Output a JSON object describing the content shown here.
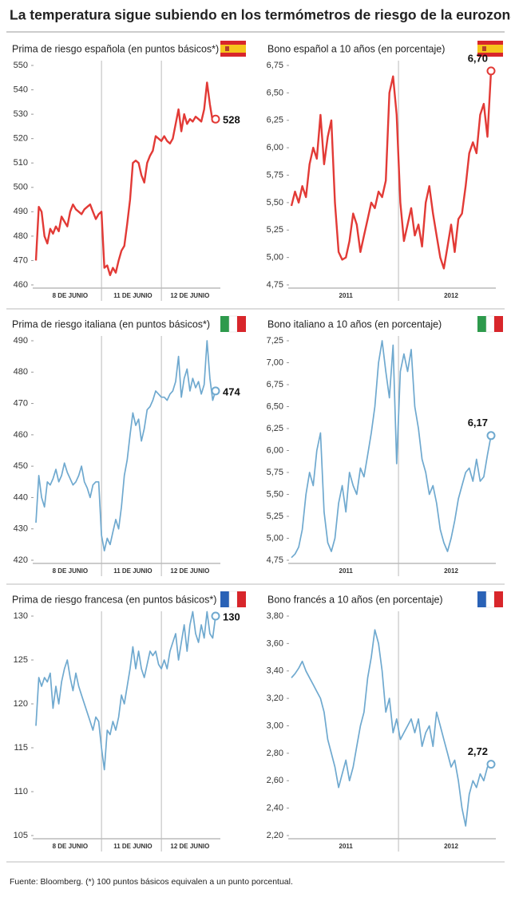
{
  "title": "La temperatura sigue subiendo en los termómetros de riesgo de la eurozona",
  "source": "Fuente: Bloomberg. (*) 100 puntos básicos equivalen a un punto porcentual.",
  "chart_data": [
    {
      "type": "line",
      "title": "Prima de riesgo española (en puntos básicos*)",
      "color": "#e23a36",
      "categories": [
        null,
        null,
        null,
        null,
        null,
        null,
        null,
        null,
        null,
        null,
        null,
        null,
        "8 DE JUNIO",
        null,
        null,
        null,
        null,
        null,
        null,
        null,
        null,
        null,
        null,
        null,
        null,
        null,
        null,
        null,
        null,
        null,
        null,
        null,
        null,
        null,
        "11 DE JUNIO",
        null,
        null,
        null,
        null,
        null,
        null,
        null,
        null,
        null,
        null,
        null,
        null,
        null,
        null,
        null,
        null,
        null,
        null,
        null,
        "12 DE JUNIO",
        null,
        null,
        null,
        null,
        null,
        null,
        null,
        null,
        null
      ],
      "values": [
        470,
        492,
        490,
        480,
        477,
        483,
        481,
        484,
        482,
        488,
        486,
        484,
        490,
        493,
        491,
        490,
        489,
        491,
        492,
        493,
        490,
        487,
        489,
        490,
        467,
        468,
        464,
        467,
        465,
        470,
        474,
        476,
        485,
        495,
        510,
        511,
        510,
        505,
        502,
        510,
        513,
        515,
        521,
        520,
        519,
        521,
        519,
        518,
        520,
        526,
        532,
        523,
        530,
        526,
        528,
        527,
        529,
        528,
        527,
        532,
        543,
        534,
        527,
        528
      ],
      "ylim": [
        460,
        550
      ],
      "yticks": [
        460,
        470,
        480,
        490,
        500,
        510,
        520,
        530,
        540,
        550
      ]
    },
    {
      "type": "line",
      "title": "Bono español a 10 años (en porcentaje)",
      "color": "#e23a36",
      "categories": [
        null,
        null,
        null,
        null,
        null,
        null,
        null,
        null,
        null,
        null,
        null,
        null,
        null,
        null,
        null,
        "2011",
        null,
        null,
        null,
        null,
        null,
        null,
        null,
        null,
        null,
        null,
        null,
        null,
        null,
        null,
        null,
        null,
        null,
        null,
        null,
        null,
        null,
        null,
        null,
        null,
        null,
        null,
        null,
        null,
        "2012",
        null,
        null,
        null,
        null,
        null,
        null,
        null,
        null,
        null,
        null,
        null
      ],
      "values": [
        5.47,
        5.6,
        5.5,
        5.65,
        5.55,
        5.85,
        6.0,
        5.9,
        6.3,
        5.85,
        6.1,
        6.25,
        5.5,
        5.05,
        4.98,
        5.0,
        5.15,
        5.4,
        5.3,
        5.05,
        5.2,
        5.35,
        5.5,
        5.45,
        5.6,
        5.55,
        5.7,
        6.5,
        6.65,
        6.3,
        5.5,
        5.15,
        5.3,
        5.45,
        5.2,
        5.3,
        5.1,
        5.5,
        5.65,
        5.4,
        5.2,
        5.0,
        4.9,
        5.1,
        5.3,
        5.05,
        5.35,
        5.4,
        5.65,
        5.95,
        6.05,
        5.95,
        6.3,
        6.4,
        6.1,
        6.7
      ],
      "value_labels": [
        null,
        null,
        null,
        null,
        null,
        null,
        null,
        null,
        null,
        null,
        null,
        null,
        null,
        null,
        null,
        null,
        null,
        null,
        null,
        null,
        null,
        null,
        null,
        null,
        null,
        null,
        null,
        null,
        null,
        null,
        null,
        null,
        null,
        null,
        null,
        null,
        null,
        null,
        null,
        null,
        null,
        null,
        null,
        null,
        null,
        null,
        null,
        null,
        null,
        null,
        null,
        null,
        null,
        null,
        null,
        "6,70"
      ],
      "ylim": [
        4.75,
        6.75
      ],
      "yticks": [
        {
          "value": 4.75,
          "label": "4,75"
        },
        {
          "value": 5.0,
          "label": "5,00"
        },
        {
          "value": 5.25,
          "label": "5,25"
        },
        {
          "value": 5.5,
          "label": "5,50"
        },
        {
          "value": 5.75,
          "label": "5,75"
        },
        {
          "value": 6.0,
          "label": "6,00"
        },
        {
          "value": 6.25,
          "label": "6,25"
        },
        {
          "value": 6.5,
          "label": "6,50"
        },
        {
          "value": 6.75,
          "label": "6,75"
        }
      ]
    },
    {
      "type": "line",
      "title": "Prima de riesgo italiana (en puntos básicos*)",
      "color": "#6fa9cf",
      "categories": [
        null,
        null,
        null,
        null,
        null,
        null,
        null,
        null,
        null,
        null,
        null,
        null,
        "8 DE JUNIO",
        null,
        null,
        null,
        null,
        null,
        null,
        null,
        null,
        null,
        null,
        null,
        null,
        null,
        null,
        null,
        null,
        null,
        null,
        null,
        null,
        null,
        "11 DE JUNIO",
        null,
        null,
        null,
        null,
        null,
        null,
        null,
        null,
        null,
        null,
        null,
        null,
        null,
        null,
        null,
        null,
        null,
        null,
        null,
        "12 DE JUNIO",
        null,
        null,
        null,
        null,
        null,
        null,
        null,
        null,
        null
      ],
      "values": [
        432,
        447,
        440,
        437,
        445,
        444,
        446,
        449,
        445,
        447,
        451,
        448,
        446,
        444,
        445,
        447,
        450,
        445,
        443,
        440,
        444,
        445,
        445,
        428,
        423,
        427,
        425,
        429,
        433,
        430,
        437,
        447,
        452,
        460,
        467,
        463,
        465,
        458,
        462,
        468,
        469,
        471,
        474,
        473,
        472,
        472,
        471,
        473,
        474,
        477,
        485,
        472,
        478,
        481,
        474,
        478,
        475,
        477,
        473,
        476,
        490,
        478,
        471,
        474
      ],
      "ylim": [
        420,
        490
      ],
      "yticks": [
        420,
        430,
        440,
        450,
        460,
        470,
        480,
        490
      ]
    },
    {
      "type": "line",
      "title": "Bono italiano a 10 años (en porcentaje)",
      "color": "#6fa9cf",
      "categories": [
        null,
        null,
        null,
        null,
        null,
        null,
        null,
        null,
        null,
        null,
        null,
        null,
        null,
        null,
        null,
        "2011",
        null,
        null,
        null,
        null,
        null,
        null,
        null,
        null,
        null,
        null,
        null,
        null,
        null,
        null,
        null,
        null,
        null,
        null,
        null,
        null,
        null,
        null,
        null,
        null,
        null,
        null,
        null,
        null,
        "2012",
        null,
        null,
        null,
        null,
        null,
        null,
        null,
        null,
        null,
        null,
        null
      ],
      "values": [
        4.78,
        4.82,
        4.9,
        5.1,
        5.5,
        5.75,
        5.6,
        6.0,
        6.2,
        5.3,
        4.95,
        4.85,
        5.0,
        5.4,
        5.6,
        5.3,
        5.75,
        5.6,
        5.5,
        5.8,
        5.7,
        5.95,
        6.2,
        6.5,
        7.0,
        7.25,
        6.9,
        6.6,
        7.2,
        5.85,
        6.9,
        7.1,
        6.9,
        7.15,
        6.5,
        6.25,
        5.9,
        5.75,
        5.5,
        5.6,
        5.4,
        5.1,
        4.95,
        4.85,
        5.0,
        5.2,
        5.45,
        5.6,
        5.75,
        5.8,
        5.65,
        5.9,
        5.65,
        5.7,
        5.95,
        6.17
      ],
      "value_labels": [
        null,
        null,
        null,
        null,
        null,
        null,
        null,
        null,
        null,
        null,
        null,
        null,
        null,
        null,
        null,
        null,
        null,
        null,
        null,
        null,
        null,
        null,
        null,
        null,
        null,
        null,
        null,
        null,
        null,
        null,
        null,
        null,
        null,
        null,
        null,
        null,
        null,
        null,
        null,
        null,
        null,
        null,
        null,
        null,
        null,
        null,
        null,
        null,
        null,
        null,
        null,
        null,
        null,
        null,
        null,
        "6,17"
      ],
      "ylim": [
        4.75,
        7.25
      ],
      "yticks": [
        {
          "value": 4.75,
          "label": "4,75"
        },
        {
          "value": 5.0,
          "label": "5,00"
        },
        {
          "value": 5.25,
          "label": "5,25"
        },
        {
          "value": 5.5,
          "label": "5,50"
        },
        {
          "value": 5.75,
          "label": "5,75"
        },
        {
          "value": 6.0,
          "label": "6,00"
        },
        {
          "value": 6.25,
          "label": "6,25"
        },
        {
          "value": 6.5,
          "label": "6,50"
        },
        {
          "value": 6.75,
          "label": "6,75"
        },
        {
          "value": 7.0,
          "label": "7,00"
        },
        {
          "value": 7.25,
          "label": "7,25"
        }
      ]
    },
    {
      "type": "line",
      "title": "Prima de riesgo francesa (en puntos básicos*)",
      "color": "#6fa9cf",
      "categories": [
        null,
        null,
        null,
        null,
        null,
        null,
        null,
        null,
        null,
        null,
        null,
        null,
        "8 DE JUNIO",
        null,
        null,
        null,
        null,
        null,
        null,
        null,
        null,
        null,
        null,
        null,
        null,
        null,
        null,
        null,
        null,
        null,
        null,
        null,
        null,
        null,
        "11 DE JUNIO",
        null,
        null,
        null,
        null,
        null,
        null,
        null,
        null,
        null,
        null,
        null,
        null,
        null,
        null,
        null,
        null,
        null,
        null,
        null,
        "12 DE JUNIO",
        null,
        null,
        null,
        null,
        null,
        null,
        null,
        null,
        null
      ],
      "values": [
        117.5,
        123,
        122,
        123,
        122.5,
        123.5,
        119.5,
        122,
        120,
        122.5,
        124,
        125,
        123,
        121.5,
        123.5,
        122,
        121,
        120,
        119,
        118,
        117,
        118.5,
        118,
        115,
        112.5,
        117,
        116.5,
        118,
        117,
        118.5,
        121,
        120,
        122,
        124,
        126.5,
        124,
        126,
        124,
        123,
        124.5,
        126,
        125.5,
        126,
        124.5,
        124,
        125,
        124,
        126,
        127,
        128,
        125,
        127,
        129,
        126,
        129,
        130.5,
        128,
        127,
        129,
        127.5,
        130.5,
        128,
        127.5,
        130
      ],
      "ylim": [
        105,
        130
      ],
      "yticks": [
        105,
        110,
        115,
        120,
        125,
        130
      ]
    },
    {
      "type": "line",
      "title": "Bono francés a 10 años (en porcentaje)",
      "color": "#6fa9cf",
      "categories": [
        null,
        null,
        null,
        null,
        null,
        null,
        null,
        null,
        null,
        null,
        null,
        null,
        null,
        null,
        null,
        "2011",
        null,
        null,
        null,
        null,
        null,
        null,
        null,
        null,
        null,
        null,
        null,
        null,
        null,
        null,
        null,
        null,
        null,
        null,
        null,
        null,
        null,
        null,
        null,
        null,
        null,
        null,
        null,
        null,
        "2012",
        null,
        null,
        null,
        null,
        null,
        null,
        null,
        null,
        null,
        null,
        null
      ],
      "values": [
        3.35,
        3.38,
        3.42,
        3.47,
        3.4,
        3.35,
        3.3,
        3.25,
        3.2,
        3.1,
        2.9,
        2.8,
        2.7,
        2.55,
        2.65,
        2.75,
        2.6,
        2.7,
        2.85,
        3.0,
        3.1,
        3.35,
        3.5,
        3.7,
        3.6,
        3.4,
        3.1,
        3.2,
        2.95,
        3.05,
        2.9,
        2.95,
        3.0,
        3.05,
        2.95,
        3.05,
        2.85,
        2.95,
        3.0,
        2.85,
        3.1,
        3.0,
        2.9,
        2.8,
        2.7,
        2.75,
        2.6,
        2.4,
        2.27,
        2.5,
        2.6,
        2.55,
        2.65,
        2.6,
        2.7,
        2.72
      ],
      "value_labels": [
        null,
        null,
        null,
        null,
        null,
        null,
        null,
        null,
        null,
        null,
        null,
        null,
        null,
        null,
        null,
        null,
        null,
        null,
        null,
        null,
        null,
        null,
        null,
        null,
        null,
        null,
        null,
        null,
        null,
        null,
        null,
        null,
        null,
        null,
        null,
        null,
        null,
        null,
        null,
        null,
        null,
        null,
        null,
        null,
        null,
        null,
        null,
        null,
        null,
        null,
        null,
        null,
        null,
        null,
        null,
        "2,72"
      ],
      "ylim": [
        2.2,
        3.8
      ],
      "yticks": [
        {
          "value": 2.2,
          "label": "2,20"
        },
        {
          "value": 2.4,
          "label": "2,40"
        },
        {
          "value": 2.6,
          "label": "2,60"
        },
        {
          "value": 2.8,
          "label": "2,80"
        },
        {
          "value": 3.0,
          "label": "3,00"
        },
        {
          "value": 3.2,
          "label": "3,20"
        },
        {
          "value": 3.4,
          "label": "3,40"
        },
        {
          "value": 3.6,
          "label": "3,60"
        },
        {
          "value": 3.8,
          "label": "3,80"
        }
      ]
    }
  ]
}
